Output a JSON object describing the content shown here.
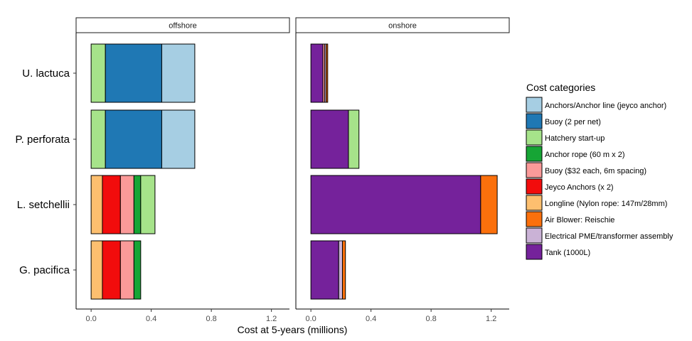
{
  "chart_data": {
    "type": "bar",
    "orientation": "horizontal",
    "stacked": true,
    "xlabel": "Cost at 5-years (millions)",
    "xlim": [
      -0.1,
      1.32
    ],
    "xticks": [
      0.0,
      0.4,
      0.8,
      1.2
    ],
    "tick_labels": [
      "0.0",
      "0.4",
      "0.8",
      "1.2"
    ],
    "grid": false,
    "legend_position": "right",
    "legend_title": "Cost categories",
    "categories": [
      "U. lactuca",
      "P. perforata",
      "L. setchellii",
      "G. pacifica"
    ],
    "colors": {
      "Anchors/Anchor line (jeyco anchor)": "#a6cee3",
      "Buoy (2 per net)": "#1f78b4",
      "Hatchery start-up": "#a6e38a",
      "Anchor rope (60 m x 2)": "#16a535",
      "Buoy ($32 each, 6m spacing)": "#fb9a99",
      "Jeyco Anchors (x 2)": "#f20c0c",
      "Longline (Nylon rope: 147m/28mm)": "#fdbf6f",
      "Air Blower: Reischie": "#fb700c",
      "Electrical PME/transformer assembly": "#cab2d6",
      "Tank (1000L)": "#75229b"
    },
    "legend_order": [
      "Anchors/Anchor line (jeyco anchor)",
      "Buoy (2 per net)",
      "Hatchery start-up",
      "Anchor rope (60 m x 2)",
      "Buoy ($32 each, 6m spacing)",
      "Jeyco Anchors (x 2)",
      "Longline (Nylon rope: 147m/28mm)",
      "Air Blower: Reischie",
      "Electrical PME/transformer assembly",
      "Tank (1000L)"
    ],
    "panels": [
      {
        "name": "offshore",
        "bars": [
          {
            "category": "U. lactuca",
            "segments": [
              {
                "series": "Hatchery start-up",
                "value": 0.095
              },
              {
                "series": "Buoy (2 per net)",
                "value": 0.375
              },
              {
                "series": "Anchors/Anchor line (jeyco anchor)",
                "value": 0.22
              }
            ]
          },
          {
            "category": "P. perforata",
            "segments": [
              {
                "series": "Hatchery start-up",
                "value": 0.095
              },
              {
                "series": "Buoy (2 per net)",
                "value": 0.375
              },
              {
                "series": "Anchors/Anchor line (jeyco anchor)",
                "value": 0.22
              }
            ]
          },
          {
            "category": "L. setchellii",
            "segments": [
              {
                "series": "Longline (Nylon rope: 147m/28mm)",
                "value": 0.075
              },
              {
                "series": "Jeyco Anchors (x 2)",
                "value": 0.12
              },
              {
                "series": "Buoy ($32 each, 6m spacing)",
                "value": 0.09
              },
              {
                "series": "Anchor rope (60 m x 2)",
                "value": 0.045
              },
              {
                "series": "Hatchery start-up",
                "value": 0.095
              }
            ]
          },
          {
            "category": "G. pacifica",
            "segments": [
              {
                "series": "Longline (Nylon rope: 147m/28mm)",
                "value": 0.075
              },
              {
                "series": "Jeyco Anchors (x 2)",
                "value": 0.12
              },
              {
                "series": "Buoy ($32 each, 6m spacing)",
                "value": 0.09
              },
              {
                "series": "Anchor rope (60 m x 2)",
                "value": 0.045
              }
            ]
          }
        ]
      },
      {
        "name": "onshore",
        "bars": [
          {
            "category": "U. lactuca",
            "segments": [
              {
                "series": "Tank (1000L)",
                "value": 0.08
              },
              {
                "series": "Buoy ($32 each, 6m spacing)",
                "value": 0.012
              },
              {
                "series": "Electrical PME/transformer assembly",
                "value": 0.01
              },
              {
                "series": "Air Blower: Reischie",
                "value": 0.01
              }
            ]
          },
          {
            "category": "P. perforata",
            "segments": [
              {
                "series": "Tank (1000L)",
                "value": 0.25
              },
              {
                "series": "Hatchery start-up",
                "value": 0.07
              }
            ]
          },
          {
            "category": "L. setchellii",
            "segments": [
              {
                "series": "Tank (1000L)",
                "value": 1.13
              },
              {
                "series": "Air Blower: Reischie",
                "value": 0.11
              }
            ]
          },
          {
            "category": "G. pacifica",
            "segments": [
              {
                "series": "Tank (1000L)",
                "value": 0.185
              },
              {
                "series": "Electrical PME/transformer assembly",
                "value": 0.025
              },
              {
                "series": "Air Blower: Reischie",
                "value": 0.02
              }
            ]
          }
        ]
      }
    ]
  }
}
